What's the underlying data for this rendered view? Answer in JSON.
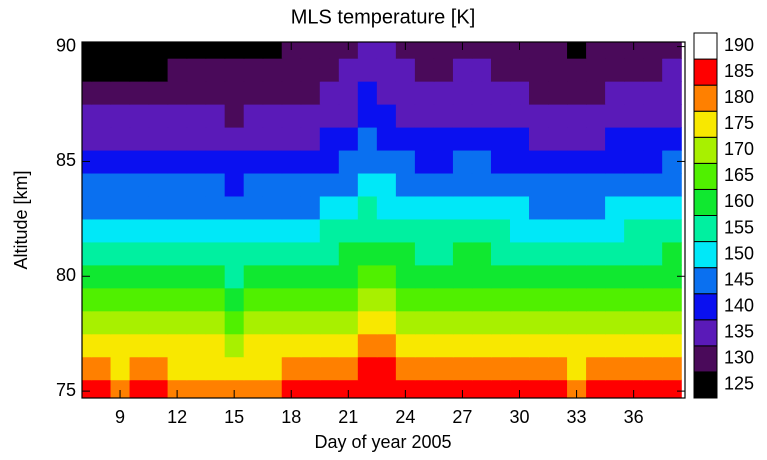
{
  "chart_data": {
    "type": "contour",
    "title": "MLS temperature [K]",
    "x_label": "Day of year 2005",
    "y_label": "Altitude [km]",
    "xlim": [
      7,
      38.7
    ],
    "ylim": [
      74.7,
      90.2
    ],
    "xticks": [
      9,
      12,
      15,
      18,
      21,
      24,
      27,
      30,
      33,
      36
    ],
    "yticks": [
      75,
      80,
      85,
      90
    ],
    "x": [
      7,
      8,
      9,
      10,
      11,
      12,
      13,
      14,
      15,
      16,
      17,
      18,
      19,
      20,
      21,
      22,
      23,
      24,
      25,
      26,
      27,
      28,
      29,
      30,
      31,
      32,
      33,
      34,
      35,
      36,
      37,
      38
    ],
    "y": [
      75,
      76,
      77,
      78,
      79,
      80,
      81,
      82,
      83,
      84,
      85,
      86,
      87,
      88,
      89,
      90
    ],
    "z": [
      [
        185,
        185,
        184,
        185,
        185,
        184,
        184,
        184,
        184,
        184,
        184,
        185,
        185,
        186,
        186,
        188,
        187,
        186,
        186,
        186,
        186,
        186,
        186,
        185,
        185,
        185,
        184,
        185,
        185,
        186,
        186,
        186
      ],
      [
        180,
        180,
        179,
        180,
        180,
        179,
        179,
        179,
        178,
        179,
        179,
        180,
        180,
        182,
        183,
        186,
        185,
        183,
        182,
        182,
        183,
        183,
        182,
        181,
        180,
        180,
        179,
        180,
        181,
        182,
        182,
        183
      ],
      [
        176,
        176,
        175,
        176,
        176,
        175,
        175,
        175,
        174,
        175,
        175,
        176,
        176,
        178,
        179,
        182,
        181,
        179,
        178,
        178,
        179,
        179,
        178,
        177,
        176,
        176,
        175,
        176,
        177,
        178,
        178,
        179
      ],
      [
        171,
        171,
        170,
        171,
        171,
        170,
        170,
        170,
        169,
        170,
        170,
        171,
        171,
        173,
        174,
        177,
        176,
        174,
        173,
        173,
        174,
        174,
        173,
        172,
        171,
        171,
        170,
        171,
        172,
        173,
        173,
        174
      ],
      [
        166,
        166,
        165,
        166,
        166,
        165,
        165,
        165,
        164,
        165,
        165,
        166,
        166,
        168,
        169,
        172,
        171,
        169,
        168,
        168,
        169,
        169,
        168,
        167,
        166,
        166,
        165,
        166,
        167,
        168,
        168,
        169
      ],
      [
        161,
        161,
        160,
        161,
        161,
        160,
        160,
        160,
        159,
        160,
        160,
        161,
        161,
        163,
        164,
        167,
        166,
        164,
        163,
        163,
        164,
        164,
        163,
        162,
        161,
        161,
        160,
        161,
        162,
        163,
        163,
        164
      ],
      [
        157,
        157,
        156,
        157,
        157,
        156,
        156,
        156,
        155,
        156,
        156,
        157,
        157,
        159,
        160,
        163,
        162,
        160,
        159,
        159,
        160,
        160,
        159,
        158,
        157,
        157,
        156,
        157,
        158,
        159,
        159,
        160
      ],
      [
        153,
        153,
        152,
        153,
        153,
        152,
        152,
        152,
        151,
        152,
        152,
        153,
        153,
        155,
        156,
        159,
        158,
        156,
        155,
        155,
        156,
        156,
        155,
        154,
        153,
        153,
        152,
        153,
        154,
        155,
        155,
        156
      ],
      [
        149,
        149,
        148,
        149,
        149,
        148,
        148,
        148,
        147,
        148,
        148,
        149,
        149,
        151,
        152,
        155,
        154,
        152,
        151,
        151,
        152,
        152,
        151,
        150,
        149,
        149,
        148,
        149,
        150,
        151,
        151,
        152
      ],
      [
        146,
        146,
        145,
        146,
        146,
        145,
        145,
        145,
        144,
        145,
        145,
        146,
        146,
        148,
        149,
        152,
        151,
        149,
        148,
        148,
        149,
        149,
        148,
        147,
        146,
        146,
        145,
        146,
        147,
        148,
        148,
        149
      ],
      [
        142,
        142,
        141,
        142,
        142,
        141,
        141,
        141,
        140,
        141,
        141,
        142,
        142,
        144,
        145,
        148,
        147,
        145,
        144,
        144,
        145,
        145,
        144,
        143,
        142,
        142,
        141,
        142,
        143,
        144,
        144,
        145
      ],
      [
        139,
        139,
        138,
        139,
        139,
        138,
        138,
        138,
        137,
        138,
        138,
        139,
        139,
        141,
        142,
        145,
        144,
        142,
        141,
        141,
        142,
        142,
        141,
        140,
        139,
        139,
        138,
        139,
        140,
        141,
        141,
        142
      ],
      [
        136,
        136,
        135,
        136,
        136,
        135,
        135,
        135,
        134,
        135,
        135,
        136,
        136,
        138,
        139,
        142,
        141,
        139,
        138,
        138,
        139,
        139,
        138,
        137,
        136,
        136,
        135,
        136,
        137,
        138,
        138,
        139
      ],
      [
        131,
        131,
        130,
        131,
        131,
        133,
        133,
        133,
        132,
        133,
        133,
        134,
        134,
        136,
        137,
        140,
        139,
        137,
        136,
        136,
        137,
        137,
        136,
        135,
        134,
        134,
        133,
        134,
        135,
        136,
        136,
        137
      ],
      [
        127,
        127,
        126,
        127,
        127,
        130,
        131,
        131,
        130,
        131,
        131,
        132,
        132,
        134,
        135,
        138,
        137,
        135,
        134,
        134,
        135,
        135,
        134,
        133,
        132,
        132,
        131,
        132,
        133,
        134,
        134,
        135
      ],
      [
        125,
        125,
        124,
        125,
        125,
        128,
        129,
        129,
        128,
        129,
        129,
        130,
        130,
        132,
        133,
        136,
        135,
        133,
        132,
        132,
        133,
        133,
        132,
        131,
        130,
        130,
        129,
        130,
        131,
        132,
        132,
        133
      ]
    ],
    "levels": [
      125,
      130,
      135,
      140,
      145,
      150,
      155,
      160,
      165,
      170,
      175,
      180,
      185,
      190
    ],
    "colors": [
      "#000000",
      "#4a0a5a",
      "#5a1ab8",
      "#0a10f0",
      "#0a70f0",
      "#00e8f8",
      "#00f0a0",
      "#10e830",
      "#50f000",
      "#a8f000",
      "#f8e800",
      "#ff8000",
      "#ff0000",
      "#ffffff"
    ]
  }
}
